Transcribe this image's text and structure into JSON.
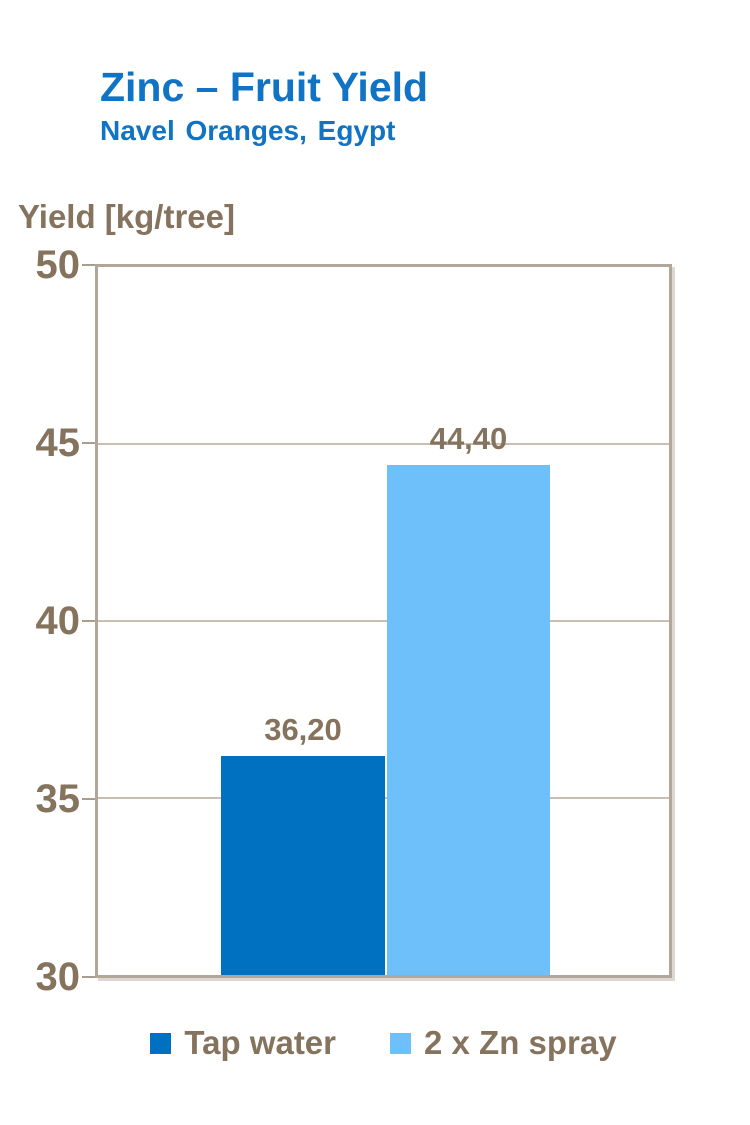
{
  "header": {
    "title": "Zinc – Fruit Yield",
    "subtitle": "Navel Oranges, Egypt"
  },
  "chart_data": {
    "type": "bar",
    "categories": [
      "Tap water",
      "2 x Zn spray"
    ],
    "values": [
      36.2,
      44.4
    ],
    "value_labels": [
      "36,20",
      "44,40"
    ],
    "colors": [
      "#0070C0",
      "#6EC0FB"
    ],
    "title": "Zinc – Fruit Yield",
    "subtitle": "Navel Oranges, Egypt",
    "ylabel": "Yield [kg/tree]",
    "ylim": [
      30,
      50
    ],
    "yticks": [
      "50",
      "45",
      "40",
      "35",
      "30"
    ],
    "grid": true,
    "legend_position": "bottom"
  },
  "colors": {
    "title_blue": "#1173C4",
    "label_taupe": "#85735E",
    "plot_border": "#B2A698",
    "gridline": "#C9BEB0",
    "bar_dark_blue": "#0070C0",
    "bar_light_blue": "#6EC0FB"
  }
}
